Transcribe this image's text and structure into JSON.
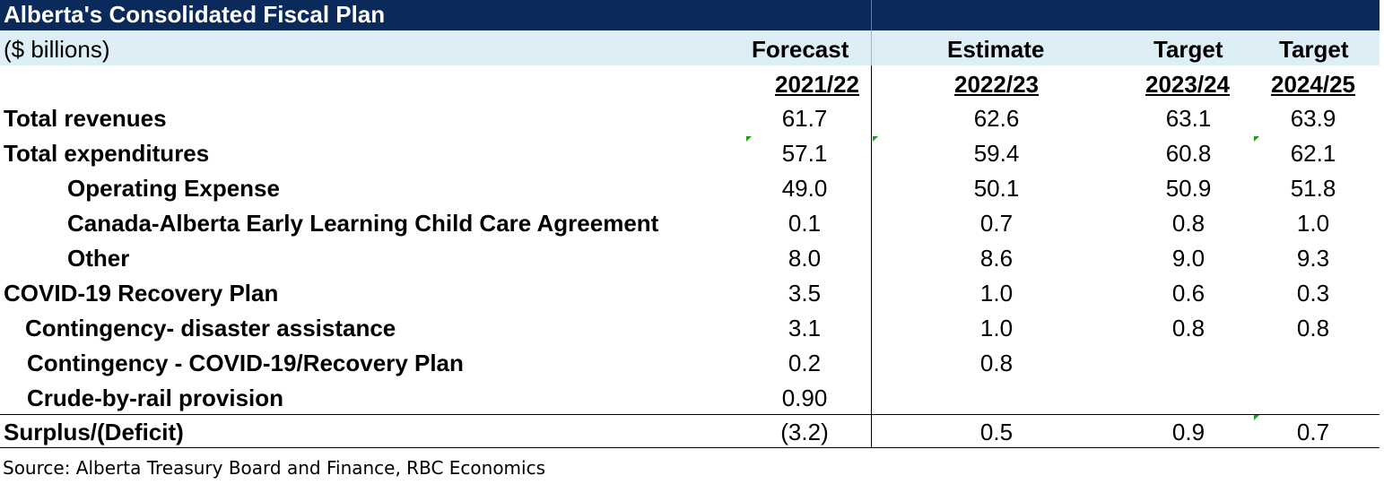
{
  "title": "Alberta's Consolidated Fiscal Plan",
  "units": "($ billions)",
  "columns": [
    {
      "kind": "Forecast",
      "year": "2021/22"
    },
    {
      "kind": "Estimate",
      "year": "2022/23"
    },
    {
      "kind": "Target",
      "year": "2023/24"
    },
    {
      "kind": "Target",
      "year": "2024/25"
    }
  ],
  "rows": [
    {
      "label": "Total revenues",
      "values": [
        "61.7",
        "62.6",
        "63.1",
        "63.9"
      ]
    },
    {
      "label": "Total expenditures",
      "values": [
        "57.1",
        "59.4",
        "60.8",
        "62.1"
      ]
    },
    {
      "label": "Operating Expense",
      "values": [
        "49.0",
        "50.1",
        "50.9",
        "51.8"
      ]
    },
    {
      "label": "Canada-Alberta Early Learning Child Care Agreement",
      "values": [
        "0.1",
        "0.7",
        "0.8",
        "1.0"
      ]
    },
    {
      "label": "Other",
      "values": [
        "8.0",
        "8.6",
        "9.0",
        "9.3"
      ]
    },
    {
      "label": "COVID-19 Recovery Plan",
      "values": [
        "3.5",
        "1.0",
        "0.6",
        "0.3"
      ]
    },
    {
      "label": "Contingency- disaster assistance",
      "values": [
        "3.1",
        "1.0",
        "0.8",
        "0.8"
      ]
    },
    {
      "label": "Contingency - COVID-19/Recovery Plan",
      "values": [
        "0.2",
        "0.8",
        "",
        ""
      ]
    },
    {
      "label": "Crude-by-rail provision",
      "values": [
        "0.90",
        "",
        "",
        ""
      ]
    },
    {
      "label": "Surplus/(Deficit)",
      "values": [
        "(3.2)",
        "0.5",
        "0.9",
        "0.7"
      ]
    }
  ],
  "source": "Source: Alberta Treasury Board and Finance, RBC Economics",
  "colors": {
    "title_bg": "#0a2a5c",
    "header_bg": "#ddeef7",
    "comment_marker": "#1f9d1f"
  }
}
